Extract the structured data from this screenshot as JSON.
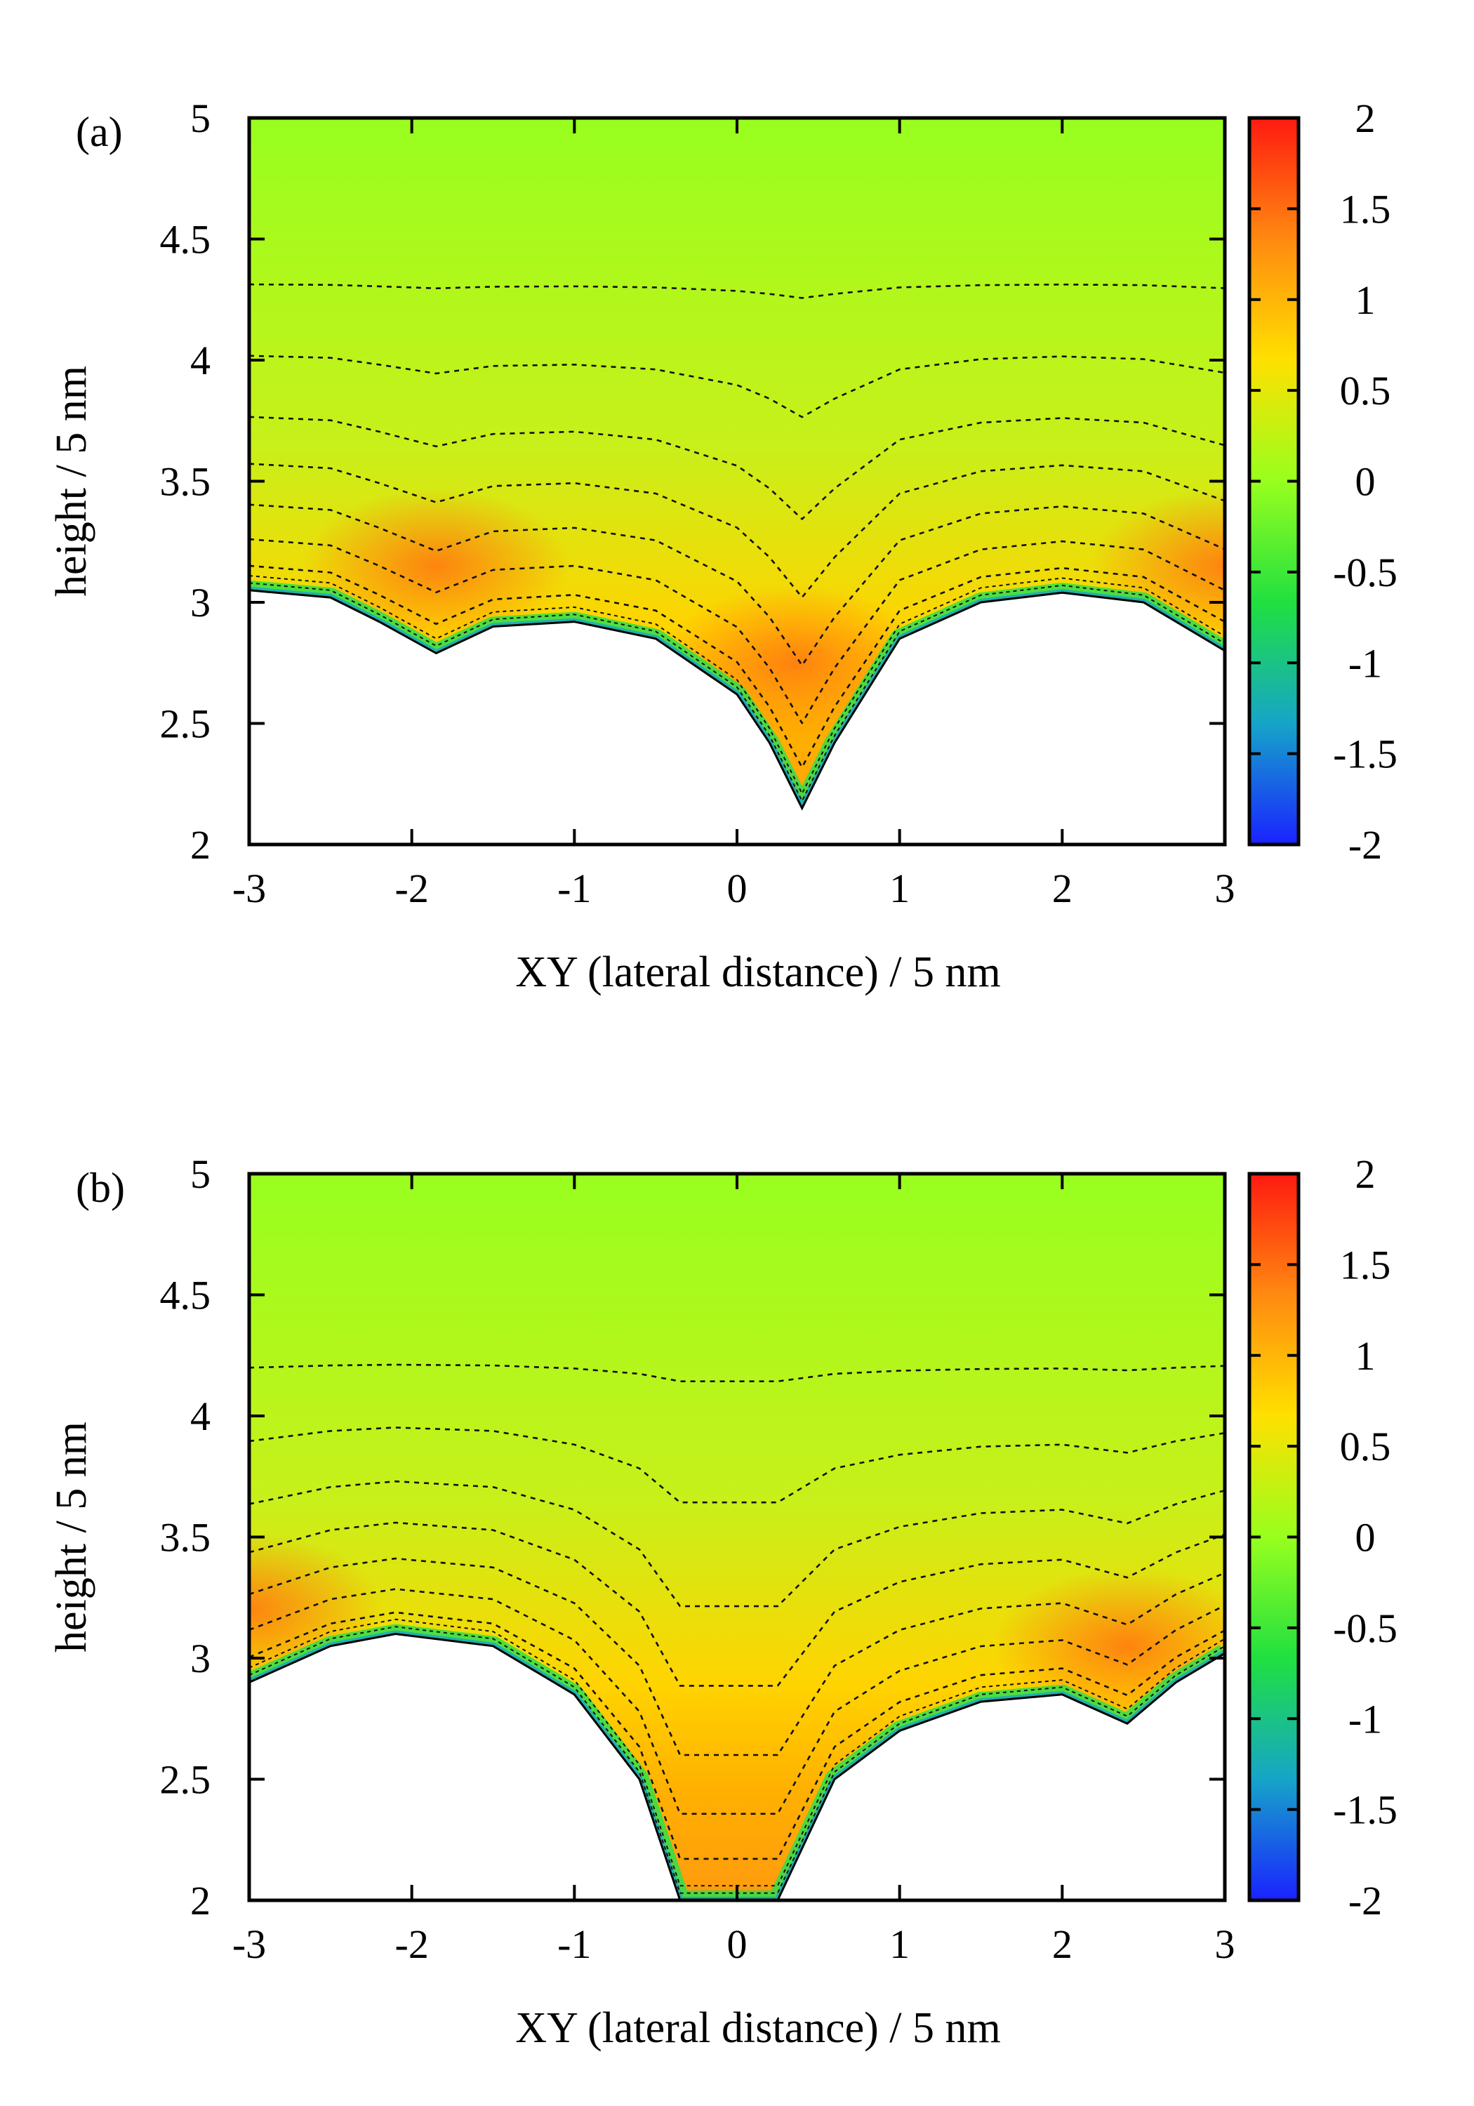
{
  "chart_data": [
    {
      "type": "heatmap",
      "panel_label": "(a)",
      "xlabel": "XY (lateral distance) /  5 nm",
      "ylabel": "height / 5 nm",
      "xlim": [
        -3,
        3
      ],
      "ylim": [
        2,
        5
      ],
      "x_ticks": [
        "-3",
        "-2",
        "-1",
        "0",
        "1",
        "2",
        "3"
      ],
      "y_ticks": [
        "2",
        "2.5",
        "3",
        "3.5",
        "4",
        "4.5",
        "5"
      ],
      "colorbar": {
        "range": [
          -2,
          2
        ],
        "ticks": [
          "-2",
          "-1.5",
          "-1",
          "-0.5",
          "0",
          "0.5",
          "1",
          "1.5",
          "2"
        ],
        "colormap": [
          "#1a22ff",
          "#16a5c8",
          "#20e040",
          "#98ff1e",
          "#ffe000",
          "#ff8a10",
          "#ff1a10"
        ]
      },
      "contours": "dashed black contour lines",
      "surface_profile": {
        "x": [
          -3.0,
          -2.5,
          -2.2,
          -1.85,
          -1.5,
          -1.0,
          -0.5,
          0.0,
          0.2,
          0.4,
          0.6,
          1.0,
          1.5,
          2.0,
          2.5,
          3.0
        ],
        "height": [
          3.05,
          3.02,
          2.92,
          2.79,
          2.9,
          2.92,
          2.85,
          2.62,
          2.42,
          2.15,
          2.42,
          2.85,
          3.0,
          3.04,
          3.0,
          2.8
        ]
      },
      "maxima": [
        {
          "x": -1.85,
          "y": 3.15,
          "value": 1.3
        },
        {
          "x": 0.35,
          "y": 2.75,
          "value": 1.3
        },
        {
          "x": 3.0,
          "y": 3.15,
          "value": 1.2
        }
      ]
    },
    {
      "type": "heatmap",
      "panel_label": "(b)",
      "xlabel": "XY (lateral distance) /  5 nm",
      "ylabel": "height / 5 nm",
      "xlim": [
        -3,
        3
      ],
      "ylim": [
        2,
        5
      ],
      "x_ticks": [
        "-3",
        "-2",
        "-1",
        "0",
        "1",
        "2",
        "3"
      ],
      "y_ticks": [
        "2",
        "2.5",
        "3",
        "3.5",
        "4",
        "4.5",
        "5"
      ],
      "colorbar": {
        "range": [
          -2,
          2
        ],
        "ticks": [
          "-2",
          "-1.5",
          "-1",
          "-0.5",
          "0",
          "0.5",
          "1",
          "1.5",
          "2"
        ],
        "colormap": [
          "#1a22ff",
          "#16a5c8",
          "#20e040",
          "#98ff1e",
          "#ffe000",
          "#ff8a10",
          "#ff1a10"
        ]
      },
      "contours": "dashed black contour lines",
      "surface_profile": {
        "x": [
          -3.0,
          -2.5,
          -2.1,
          -1.5,
          -1.0,
          -0.6,
          -0.35,
          0.0,
          0.25,
          0.6,
          1.0,
          1.5,
          2.0,
          2.4,
          2.7,
          3.0
        ],
        "height": [
          2.9,
          3.05,
          3.1,
          3.05,
          2.85,
          2.5,
          2.0,
          2.0,
          2.0,
          2.5,
          2.7,
          2.82,
          2.85,
          2.73,
          2.9,
          3.02
        ]
      },
      "maxima": [
        {
          "x": -3.0,
          "y": 3.2,
          "value": 1.2
        },
        {
          "x": 2.4,
          "y": 3.05,
          "value": 1.3
        }
      ]
    }
  ]
}
